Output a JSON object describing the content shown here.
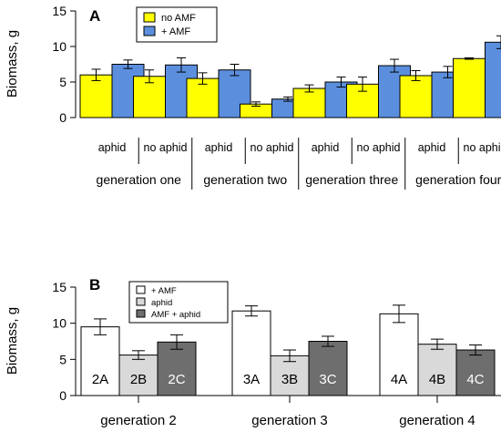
{
  "chart_data": [
    {
      "type": "bar",
      "panel_label": "A",
      "ylabel": "Biomass, g",
      "ylim": [
        0,
        15
      ],
      "yticks": [
        0,
        5,
        10,
        15
      ],
      "legend": {
        "placement": "top-center",
        "entries": [
          "no AMF",
          "+ AMF"
        ]
      },
      "series_colors": [
        "#ffff00",
        "#5b8fde"
      ],
      "categories": [
        "aphid",
        "no aphid",
        "aphid",
        "no aphid",
        "aphid",
        "no aphid",
        "aphid",
        "no aphid"
      ],
      "groups": [
        "generation one",
        "generation two",
        "generation three",
        "generation four"
      ],
      "series": [
        {
          "name": "no AMF",
          "values": [
            6.0,
            5.8,
            5.5,
            1.9,
            4.1,
            4.7,
            5.9,
            8.3
          ],
          "errors": [
            0.8,
            0.9,
            0.8,
            0.3,
            0.5,
            1.0,
            0.7,
            0.1
          ]
        },
        {
          "name": "+ AMF",
          "values": [
            7.5,
            7.4,
            6.7,
            2.6,
            5.0,
            7.3,
            6.4,
            10.6
          ],
          "errors": [
            0.6,
            1.0,
            0.8,
            0.3,
            0.7,
            0.9,
            0.8,
            0.9
          ]
        }
      ],
      "grid": false
    },
    {
      "type": "bar",
      "panel_label": "B",
      "ylabel": "Biomass, g",
      "ylim": [
        0,
        15
      ],
      "yticks": [
        0,
        5,
        10,
        15
      ],
      "legend": {
        "placement": "top-left",
        "entries": [
          "+ AMF",
          "aphid",
          "AMF + aphid"
        ]
      },
      "series_colors": [
        "#ffffff",
        "#d9d9d9",
        "#6e6e6e"
      ],
      "categories": [
        "generation 2",
        "generation 3",
        "generation 4"
      ],
      "series": [
        {
          "name": "+ AMF",
          "values": [
            9.5,
            11.7,
            11.3
          ],
          "errors": [
            1.1,
            0.7,
            1.2
          ],
          "bar_labels": [
            "2A",
            "3A",
            "4A"
          ]
        },
        {
          "name": "aphid",
          "values": [
            5.6,
            5.5,
            7.1
          ],
          "errors": [
            0.6,
            0.8,
            0.7
          ],
          "bar_labels": [
            "2B",
            "3B",
            "4B"
          ]
        },
        {
          "name": "AMF + aphid",
          "values": [
            7.4,
            7.5,
            6.3
          ],
          "errors": [
            1.0,
            0.7,
            0.7
          ],
          "bar_labels": [
            "2C",
            "3C",
            "4C"
          ]
        }
      ],
      "grid": false
    }
  ]
}
